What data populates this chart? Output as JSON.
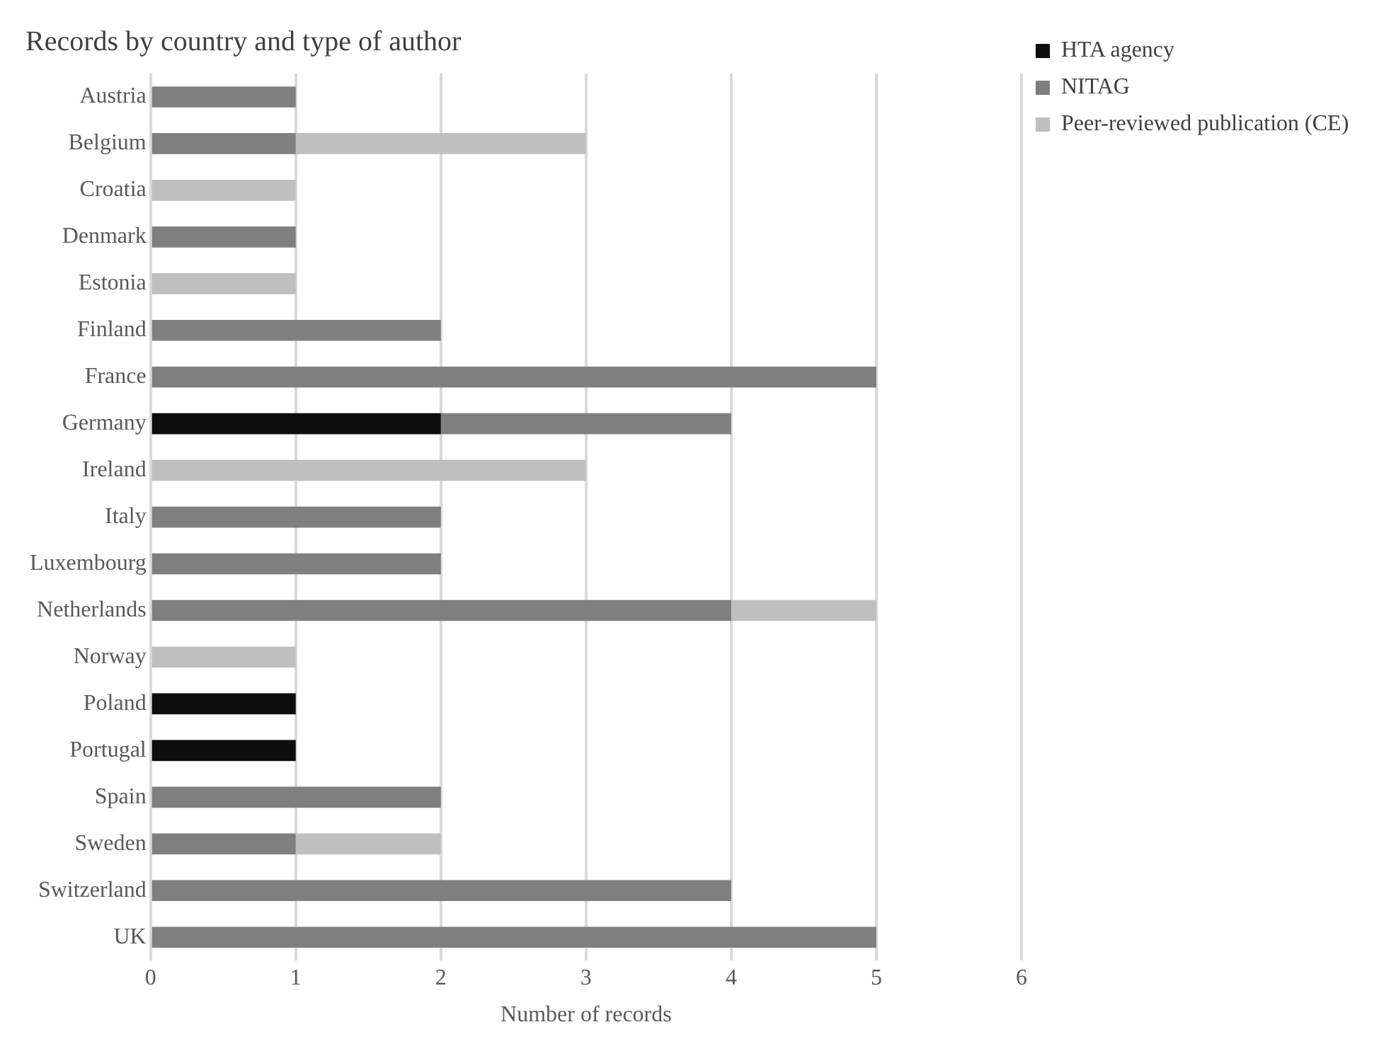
{
  "chart_data": {
    "type": "bar",
    "orientation": "horizontal",
    "stacked": true,
    "title": "Records by country and type of author",
    "xlabel": "Number of records",
    "categories": [
      "Austria",
      "Belgium",
      "Croatia",
      "Denmark",
      "Estonia",
      "Finland",
      "France",
      "Germany",
      "Ireland",
      "Italy",
      "Luxembourg",
      "Netherlands",
      "Norway",
      "Poland",
      "Portugal",
      "Spain",
      "Sweden",
      "Switzerland",
      "UK"
    ],
    "series": [
      {
        "name": "HTA agency",
        "color": "#0d0d0d",
        "values": [
          null,
          null,
          null,
          null,
          null,
          null,
          null,
          2,
          null,
          null,
          null,
          null,
          null,
          1,
          1,
          null,
          null,
          null,
          null
        ]
      },
      {
        "name": "NITAG",
        "color": "#7f7f7f",
        "values": [
          1,
          1,
          null,
          1,
          null,
          2,
          5,
          2,
          null,
          2,
          2,
          4,
          null,
          null,
          null,
          2,
          1,
          4,
          5
        ]
      },
      {
        "name": "Peer-reviewed publication (CE)",
        "color": "#bfbfbf",
        "values": [
          null,
          2,
          1,
          null,
          1,
          null,
          null,
          null,
          3,
          null,
          null,
          1,
          1,
          null,
          null,
          null,
          1,
          null,
          null
        ]
      }
    ],
    "xlim": [
      0,
      6
    ],
    "xticks": [
      0,
      1,
      2,
      3,
      4,
      5,
      6
    ],
    "grid": "x",
    "legend": "top right"
  }
}
